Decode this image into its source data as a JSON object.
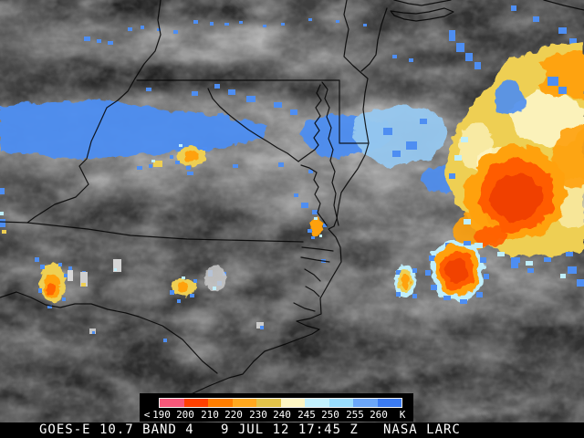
{
  "product": {
    "satellite_line": "GOES-E 10.7 BAND 4",
    "timestamp": "9 JUL 12 17:45 Z",
    "credit": "NASA LARC"
  },
  "legend": {
    "description": "brightness temperature color scale",
    "tick_labels": [
      "<",
      "190",
      "200",
      "210",
      "220",
      "230",
      "240",
      "245",
      "250",
      "255",
      "260",
      "K"
    ],
    "unit": "K",
    "scale_colors": [
      "#f8587a",
      "#ff4000",
      "#ff7e00",
      "#ffa81e",
      "#e2c34a",
      "#fdf6c3",
      "#c2f0fc",
      "#99dcfc",
      "#6ba6f8",
      "#3c7cf2"
    ]
  },
  "palette": {
    "cold_blue": "#4e8ef2",
    "light_blue": "#96c8f0",
    "pale_cyan": "#bfeefb",
    "yellow": "#eecf52",
    "cream": "#fdf6c6",
    "orange": "#ffa10a",
    "deep_orange": "#ff5c02",
    "red_orange": "#f04000",
    "cloud_gray": "#8e8e8e",
    "background_gray": "#3e3e3e"
  }
}
